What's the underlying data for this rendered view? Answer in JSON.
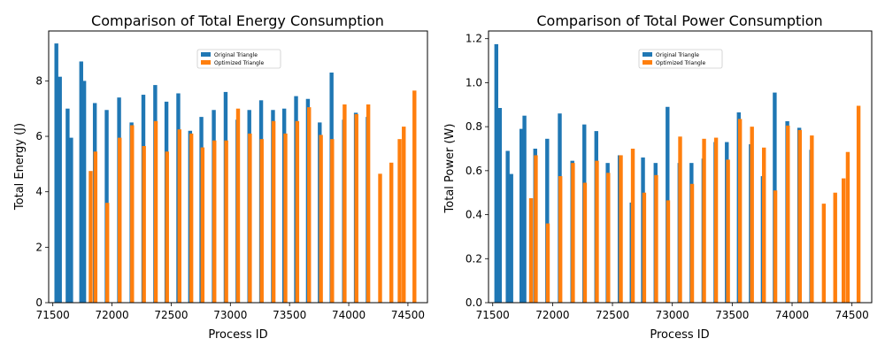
{
  "colors": {
    "series_original": "#1f77b4",
    "series_optimized": "#ff7f0e",
    "axis": "#000000",
    "background": "#ffffff"
  },
  "chart_data": [
    {
      "type": "bar",
      "title": "Comparison of Total Energy Consumption",
      "xlabel": "Process ID",
      "ylabel": "Total Energy (J)",
      "xlim": [
        71465,
        74665
      ],
      "ylim": [
        0,
        9.8
      ],
      "xticks": [
        71500,
        72000,
        72500,
        73000,
        73500,
        74000,
        74500
      ],
      "yticks": [
        0,
        2,
        4,
        6,
        8
      ],
      "legend_position": "top-center",
      "grid": false,
      "series": [
        {
          "name": "Original Triangle",
          "color": "#1f77b4",
          "x": [
            71530,
            71560,
            71625,
            71655,
            71740,
            71765,
            71855,
            71955,
            72060,
            72165,
            72265,
            72365,
            72460,
            72560,
            72660,
            72755,
            72860,
            72960,
            73060,
            73160,
            73260,
            73360,
            73455,
            73555,
            73655,
            73755,
            73855,
            73960,
            74060,
            74160
          ],
          "values": [
            9.35,
            8.15,
            7.0,
            5.95,
            8.7,
            8.0,
            7.2,
            6.95,
            7.4,
            6.5,
            7.5,
            7.85,
            7.25,
            7.55,
            6.2,
            6.7,
            6.95,
            7.6,
            6.6,
            6.95,
            7.3,
            6.95,
            7.0,
            7.45,
            7.35,
            6.5,
            8.3,
            6.6,
            6.85,
            6.7
          ]
        },
        {
          "name": "Optimized Triangle",
          "color": "#ff7f0e",
          "x": [
            71820,
            71860,
            71960,
            72065,
            72170,
            72270,
            72370,
            72465,
            72570,
            72670,
            72765,
            72865,
            72965,
            73065,
            73165,
            73265,
            73365,
            73465,
            73565,
            73665,
            73765,
            73860,
            73965,
            74065,
            74165,
            74265,
            74360,
            74430,
            74465,
            74555
          ],
          "values": [
            4.75,
            5.45,
            3.6,
            5.95,
            6.4,
            5.65,
            6.55,
            5.45,
            6.25,
            6.1,
            5.6,
            5.85,
            5.85,
            7.0,
            6.1,
            5.9,
            6.55,
            6.1,
            6.55,
            7.05,
            6.05,
            5.9,
            7.15,
            6.8,
            7.15,
            4.65,
            5.05,
            5.9,
            6.35,
            7.65
          ]
        }
      ]
    },
    {
      "type": "bar",
      "title": "Comparison of Total Power Consumption",
      "xlabel": "Process ID",
      "ylabel": "Total Power (W)",
      "xlim": [
        71465,
        74665
      ],
      "ylim": [
        0,
        1.235
      ],
      "xticks": [
        71500,
        72000,
        72500,
        73000,
        73500,
        74000,
        74500
      ],
      "yticks": [
        0.0,
        0.2,
        0.4,
        0.6,
        0.8,
        1.0,
        1.2
      ],
      "ytick_labels": [
        "0.0",
        "0.2",
        "0.4",
        "0.6",
        "0.8",
        "1.0",
        "1.2"
      ],
      "legend_position": "top-center",
      "grid": false,
      "series": [
        {
          "name": "Original Triangle",
          "color": "#1f77b4",
          "x": [
            71530,
            71560,
            71625,
            71655,
            71740,
            71765,
            71855,
            71955,
            72060,
            72165,
            72265,
            72365,
            72460,
            72560,
            72660,
            72755,
            72860,
            72960,
            73060,
            73160,
            73260,
            73360,
            73455,
            73555,
            73655,
            73755,
            73855,
            73960,
            74060,
            74160
          ],
          "values": [
            1.175,
            0.885,
            0.69,
            0.585,
            0.79,
            0.85,
            0.7,
            0.745,
            0.86,
            0.645,
            0.81,
            0.78,
            0.635,
            0.67,
            0.455,
            0.66,
            0.635,
            0.89,
            0.635,
            0.635,
            0.655,
            0.73,
            0.73,
            0.865,
            0.72,
            0.575,
            0.955,
            0.825,
            0.795,
            0.695
          ]
        },
        {
          "name": "Optimized Triangle",
          "color": "#ff7f0e",
          "x": [
            71820,
            71860,
            71960,
            72065,
            72170,
            72270,
            72370,
            72465,
            72570,
            72670,
            72765,
            72865,
            72965,
            73065,
            73165,
            73265,
            73365,
            73465,
            73565,
            73665,
            73765,
            73860,
            73965,
            74065,
            74165,
            74265,
            74360,
            74430,
            74465,
            74555
          ],
          "values": [
            0.475,
            0.67,
            0.36,
            0.575,
            0.635,
            0.545,
            0.645,
            0.59,
            0.67,
            0.7,
            0.5,
            0.58,
            0.465,
            0.755,
            0.54,
            0.745,
            0.75,
            0.65,
            0.835,
            0.8,
            0.705,
            0.51,
            0.805,
            0.785,
            0.76,
            0.45,
            0.5,
            0.565,
            0.685,
            0.895
          ]
        }
      ]
    }
  ]
}
